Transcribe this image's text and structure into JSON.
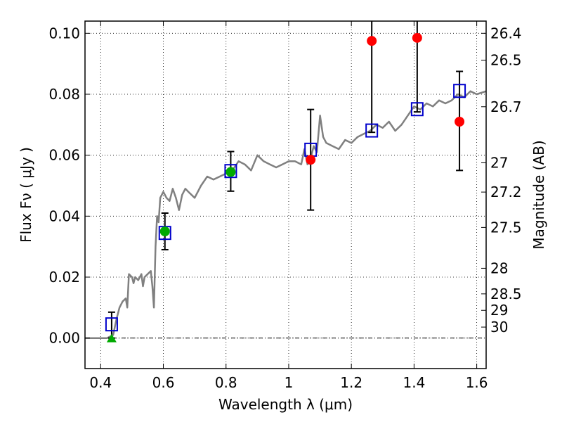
{
  "chart_data": {
    "type": "scatter",
    "xlabel": "Wavelength  λ (μm)",
    "ylabel": "Flux  Fν  ( μJy )",
    "ylabel_right": "Magnitude (AB)",
    "xlim": [
      0.35,
      1.63
    ],
    "ylim": [
      -0.01,
      0.104
    ],
    "xticks": [
      0.4,
      0.6,
      0.8,
      1.0,
      1.2,
      1.4,
      1.6
    ],
    "xtick_labels": [
      "0.4",
      "0.6",
      "0.8",
      "1",
      "1.2",
      "1.4",
      "1.6"
    ],
    "yticks": [
      0.0,
      0.02,
      0.04,
      0.06,
      0.08,
      0.1
    ],
    "ytick_labels": [
      "0.00",
      "0.02",
      "0.04",
      "0.06",
      "0.08",
      "0.10"
    ],
    "right_ticks": [
      {
        "label": "26.4",
        "flux": 0.1
      },
      {
        "label": "26.5",
        "flux": 0.0912
      },
      {
        "label": "26.7",
        "flux": 0.0759
      },
      {
        "label": "27",
        "flux": 0.0575
      },
      {
        "label": "27.2",
        "flux": 0.0479
      },
      {
        "label": "27.5",
        "flux": 0.0363
      },
      {
        "label": "28",
        "flux": 0.0229
      },
      {
        "label": "28.5",
        "flux": 0.0145
      },
      {
        "label": "29",
        "flux": 0.0091
      },
      {
        "label": "30",
        "flux": 0.0036
      }
    ],
    "grid": true,
    "series": [
      {
        "kind": "line",
        "color": "#808080",
        "x": [
          0.35,
          0.42,
          0.44,
          0.45,
          0.46,
          0.47,
          0.48,
          0.485,
          0.49,
          0.5,
          0.505,
          0.51,
          0.52,
          0.53,
          0.535,
          0.54,
          0.55,
          0.56,
          0.565,
          0.57,
          0.575,
          0.58,
          0.585,
          0.59,
          0.6,
          0.61,
          0.62,
          0.63,
          0.64,
          0.65,
          0.66,
          0.67,
          0.68,
          0.7,
          0.72,
          0.74,
          0.76,
          0.78,
          0.8,
          0.82,
          0.84,
          0.86,
          0.88,
          0.9,
          0.92,
          0.94,
          0.96,
          0.98,
          1.0,
          1.02,
          1.04,
          1.05,
          1.06,
          1.07,
          1.08,
          1.09,
          1.1,
          1.11,
          1.12,
          1.14,
          1.16,
          1.18,
          1.2,
          1.22,
          1.24,
          1.26,
          1.28,
          1.3,
          1.32,
          1.34,
          1.36,
          1.38,
          1.4,
          1.42,
          1.44,
          1.46,
          1.48,
          1.5,
          1.52,
          1.54,
          1.56,
          1.58,
          1.6,
          1.63
        ],
        "y": [
          0.0,
          0.0,
          0.001,
          0.006,
          0.01,
          0.012,
          0.013,
          0.01,
          0.021,
          0.02,
          0.018,
          0.02,
          0.019,
          0.021,
          0.017,
          0.02,
          0.021,
          0.022,
          0.017,
          0.01,
          0.03,
          0.04,
          0.038,
          0.046,
          0.048,
          0.046,
          0.045,
          0.049,
          0.046,
          0.042,
          0.047,
          0.049,
          0.048,
          0.046,
          0.05,
          0.053,
          0.052,
          0.053,
          0.054,
          0.055,
          0.058,
          0.057,
          0.055,
          0.06,
          0.058,
          0.057,
          0.056,
          0.057,
          0.058,
          0.058,
          0.057,
          0.062,
          0.057,
          0.059,
          0.063,
          0.061,
          0.073,
          0.066,
          0.064,
          0.063,
          0.062,
          0.065,
          0.064,
          0.066,
          0.067,
          0.068,
          0.07,
          0.069,
          0.071,
          0.068,
          0.07,
          0.073,
          0.076,
          0.075,
          0.077,
          0.076,
          0.078,
          0.077,
          0.078,
          0.08,
          0.079,
          0.081,
          0.08,
          0.081
        ]
      },
      {
        "kind": "open-square",
        "color": "#0000cc",
        "x": [
          0.435,
          0.605,
          0.815,
          1.07,
          1.265,
          1.41,
          1.545
        ],
        "y": [
          0.0045,
          0.0345,
          0.0548,
          0.0618,
          0.0681,
          0.0751,
          0.0811
        ]
      },
      {
        "kind": "filled-circle",
        "color": "#00aa00",
        "x": [
          0.605,
          0.815
        ],
        "y": [
          0.035,
          0.0545
        ],
        "yerr_low": [
          0.029,
          0.0482
        ],
        "yerr_high": [
          0.041,
          0.0612
        ]
      },
      {
        "kind": "filled-circle",
        "color": "#ff0000",
        "x": [
          1.07,
          1.265,
          1.41,
          1.545
        ],
        "y": [
          0.0585,
          0.0975,
          0.0985,
          0.071
        ],
        "yerr_low": [
          0.042,
          0.0675,
          0.0742,
          0.055
        ],
        "yerr_high": [
          0.075,
          0.104,
          0.104,
          0.0875
        ]
      },
      {
        "kind": "triangle-up",
        "color": "#00aa00",
        "x": [
          0.435
        ],
        "y": [
          0.0
        ],
        "yerr_low": [
          0.0
        ],
        "yerr_high": [
          0.0085
        ]
      }
    ]
  }
}
